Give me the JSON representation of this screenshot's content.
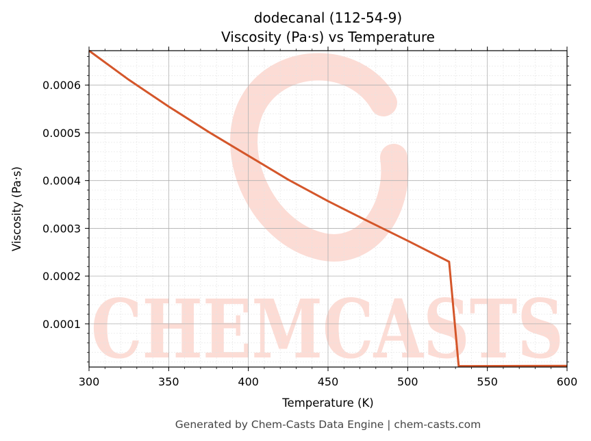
{
  "chart_data": {
    "type": "line",
    "title": "dodecanal (112-54-9)",
    "subtitle": "Viscosity (Pa·s) vs Temperature",
    "xlabel": "Temperature (K)",
    "ylabel": "Viscosity (Pa·s)",
    "xlim": [
      300,
      600
    ],
    "ylim": [
      9.5e-06,
      0.000672
    ],
    "xticks": [
      "300",
      "350",
      "400",
      "450",
      "500",
      "550",
      "600"
    ],
    "yticks": [
      "0.0001",
      "0.0002",
      "0.0003",
      "0.0004",
      "0.0005",
      "0.0006"
    ],
    "grid": true,
    "series": [
      {
        "color": "#d4562a",
        "x": [
          300,
          325,
          350,
          375,
          400,
          425,
          450,
          475,
          500,
          526,
          532,
          540,
          600
        ],
        "y": [
          0.000672,
          0.000611,
          0.000555,
          0.000502,
          0.000452,
          0.000402,
          0.000357,
          0.000315,
          0.000274,
          0.00023,
          1.15e-05,
          1.15e-05,
          1.2e-05
        ]
      }
    ],
    "watermark": "CHEMCASTS"
  },
  "footer": "Generated by Chem-Casts Data Engine | chem-casts.com",
  "colors": {
    "line": "#d4562a",
    "watermark": "#fcdcd5",
    "grid_major": "#b0b0b0",
    "grid_minor": "#e3e3e3"
  }
}
